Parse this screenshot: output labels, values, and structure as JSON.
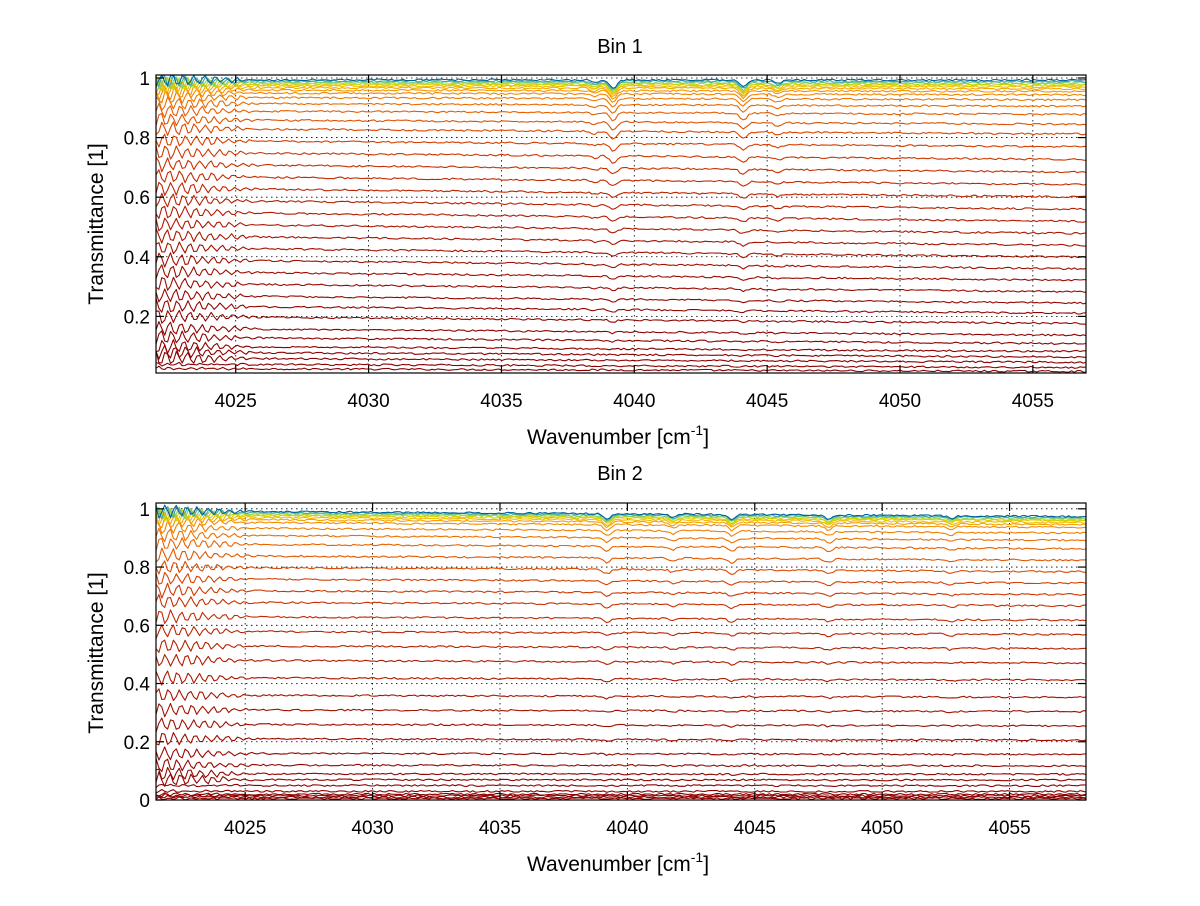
{
  "chart_data": [
    {
      "type": "line",
      "title": "Bin 1",
      "xlabel": "Wavenumber [cm",
      "xlabel_sup": "-1",
      "xlabel_suffix": "]",
      "ylabel": "Transmittance [1]",
      "xlim": [
        4022,
        4057
      ],
      "ylim": [
        0.01,
        1.01
      ],
      "xticks": [
        4025,
        4030,
        4035,
        4040,
        4045,
        4050,
        4055
      ],
      "xtick_labels": [
        "4025",
        "4030",
        "4035",
        "4040",
        "4045",
        "4050",
        "4055"
      ],
      "yticks": [
        0.2,
        0.4,
        0.6,
        0.8,
        1
      ],
      "ytick_labels": [
        "0.2",
        "0.4",
        "0.6",
        "0.8",
        "1"
      ],
      "grid": true,
      "series_levels": [
        0.025,
        0.04,
        0.06,
        0.08,
        0.1,
        0.13,
        0.16,
        0.2,
        0.235,
        0.27,
        0.31,
        0.35,
        0.39,
        0.43,
        0.47,
        0.51,
        0.55,
        0.59,
        0.63,
        0.67,
        0.71,
        0.75,
        0.79,
        0.83,
        0.86,
        0.89,
        0.915,
        0.935,
        0.95,
        0.96,
        0.968,
        0.974,
        0.978,
        0.982,
        0.986,
        0.99,
        0.994
      ],
      "level_trend": [
        -0.01,
        -0.012,
        -0.015,
        -0.018,
        -0.02,
        -0.025,
        -0.028,
        -0.03,
        -0.032,
        -0.035,
        -0.04,
        -0.045,
        -0.05,
        -0.055,
        -0.06,
        -0.065,
        -0.07,
        -0.075,
        -0.08,
        -0.085,
        -0.09,
        -0.095,
        -0.1,
        -0.105,
        -0.11,
        -0.115,
        -0.12,
        -0.125,
        -0.13,
        -0.135,
        -0.14,
        -0.145,
        -0.15,
        -0.155,
        -0.16,
        -0.165,
        -0.17
      ],
      "absorption_lines": [
        {
          "x": 4039.2,
          "depth": 0.03
        },
        {
          "x": 4044.1,
          "depth": 0.025
        },
        {
          "x": 4038.5,
          "depth": 0.01
        },
        {
          "x": 4045.4,
          "depth": 0.012
        }
      ],
      "colors": [
        "#8b0000",
        "#a01000",
        "#b51e00",
        "#c93000",
        "#d94500",
        "#e86000",
        "#f07d00",
        "#f59a00",
        "#f3c200",
        "#c8d800",
        "#5fc8b0",
        "#00639a"
      ]
    },
    {
      "type": "line",
      "title": "Bin 2",
      "xlabel": "Wavenumber [cm",
      "xlabel_sup": "-1",
      "xlabel_suffix": "]",
      "ylabel": "Transmittance [1]",
      "xlim": [
        4021.5,
        4058
      ],
      "ylim": [
        0,
        1.02
      ],
      "xticks": [
        4025,
        4030,
        4035,
        4040,
        4045,
        4050,
        4055
      ],
      "xtick_labels": [
        "4025",
        "4030",
        "4035",
        "4040",
        "4045",
        "4050",
        "4055"
      ],
      "yticks": [
        0,
        0.2,
        0.4,
        0.6,
        0.8,
        1
      ],
      "ytick_labels": [
        "0",
        "0.2",
        "0.4",
        "0.6",
        "0.8",
        "1"
      ],
      "grid": true,
      "series_levels": [
        0.005,
        0.01,
        0.015,
        0.02,
        0.03,
        0.05,
        0.07,
        0.09,
        0.12,
        0.16,
        0.21,
        0.26,
        0.31,
        0.36,
        0.42,
        0.48,
        0.53,
        0.58,
        0.63,
        0.68,
        0.72,
        0.76,
        0.8,
        0.84,
        0.88,
        0.91,
        0.935,
        0.955,
        0.965,
        0.972,
        0.978,
        0.982,
        0.986,
        0.99,
        0.993
      ],
      "absorption_lines": [
        {
          "x": 4039.2,
          "depth": 0.02
        },
        {
          "x": 4041.8,
          "depth": 0.012
        },
        {
          "x": 4044.1,
          "depth": 0.018
        },
        {
          "x": 4047.9,
          "depth": 0.015
        },
        {
          "x": 4052.7,
          "depth": 0.01
        }
      ],
      "colors": [
        "#8b0000",
        "#a01000",
        "#b51e00",
        "#c93000",
        "#d94500",
        "#e86000",
        "#f07d00",
        "#f59a00",
        "#f3c200",
        "#c8d800",
        "#5fc8b0",
        "#00639a"
      ]
    }
  ]
}
